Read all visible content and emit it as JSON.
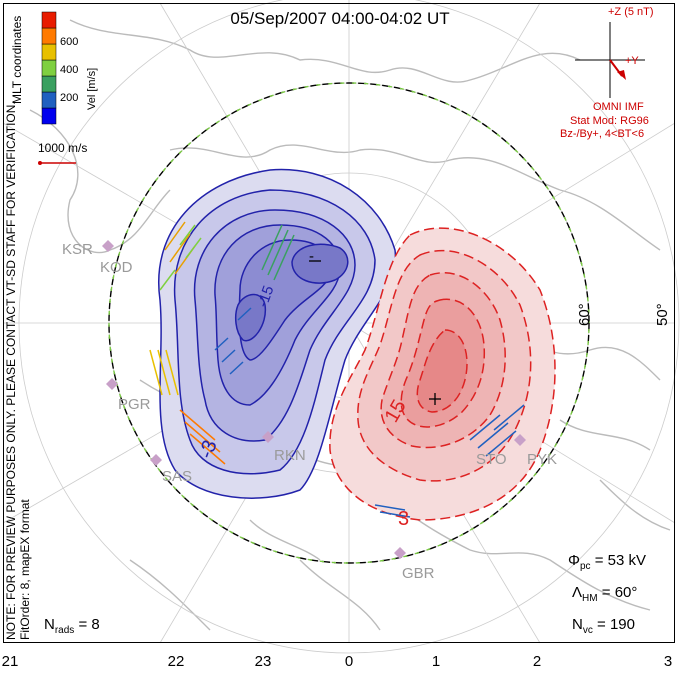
{
  "title": "05/Sep/2007 04:00-04:02 UT",
  "colorbar": {
    "label": "Vel [m/s]",
    "ticks": [
      "600",
      "400",
      "200"
    ],
    "colors": [
      "#0000ee",
      "#2060c0",
      "#3aa060",
      "#7fd040",
      "#e8c000",
      "#ff7a00",
      "#e81c00"
    ]
  },
  "reference_vector": "1000 m/s",
  "coordinates_label": "MLT coordinates",
  "imf": {
    "z_label": "+Z (5 nT)",
    "y_label": "+Y",
    "source": "OMNI IMF",
    "model": "Stat Mod: RG96",
    "condition": "Bz-/By+, 4<BT<6"
  },
  "latitude_labels": [
    "60°",
    "50°"
  ],
  "contour_labels": [
    "-",
    "+",
    "15",
    "3",
    "-15",
    "-3"
  ],
  "sites": [
    "KSR",
    "KOD",
    "PGR",
    "SAS",
    "RKN",
    "STO",
    "PYK",
    "GBR"
  ],
  "notes": [
    "NOTE: FOR PREVIEW PURPOSES ONLY. PLEASE CONTACT VT-SD STAFF FOR VERIFICATION.",
    "FitOrder: 8, mapEX format"
  ],
  "stats": {
    "phi_pc": "= 53 kV",
    "lambda_hm": "= 60°",
    "n_vc": "= 190",
    "n_rads": "= 8"
  },
  "mlt_ticks": [
    "21",
    "22",
    "23",
    "0",
    "1",
    "2",
    "3"
  ],
  "theme": {
    "negative_cell": "#2222aa",
    "positive_cell": "#dd2222",
    "heppner_maynard": "#7ac943",
    "coastline": "#bbbbbb"
  }
}
